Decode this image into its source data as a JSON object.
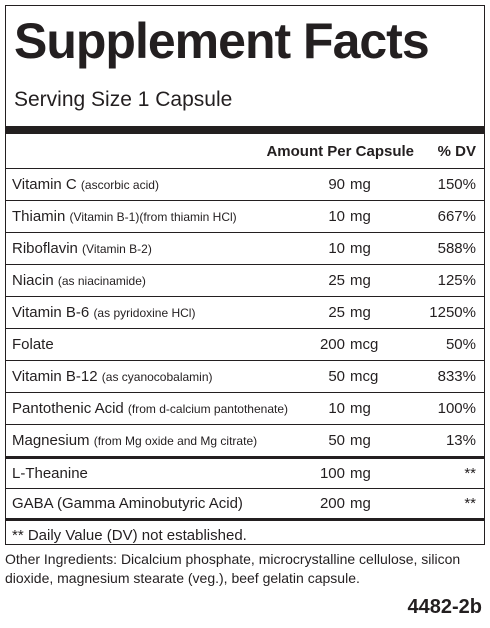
{
  "header": {
    "title": "Supplement Facts",
    "serving_size": "Serving Size 1 Capsule"
  },
  "table": {
    "columns": [
      "Amount Per Capsule",
      "% DV"
    ],
    "sections": [
      {
        "rows": [
          {
            "name": "Vitamin C",
            "note": "(ascorbic acid)",
            "amount": 90,
            "unit": "mg",
            "dv": "150%"
          },
          {
            "name": "Thiamin",
            "note": "(Vitamin B-1)(from thiamin HCl)",
            "amount": 10,
            "unit": "mg",
            "dv": "667%"
          },
          {
            "name": "Riboflavin",
            "note": "(Vitamin B-2)",
            "amount": 10,
            "unit": "mg",
            "dv": "588%"
          },
          {
            "name": "Niacin",
            "note": "(as niacinamide)",
            "amount": 25,
            "unit": "mg",
            "dv": "125%"
          },
          {
            "name": "Vitamin B-6",
            "note": "(as pyridoxine HCl)",
            "amount": 25,
            "unit": "mg",
            "dv": "1250%"
          },
          {
            "name": "Folate",
            "amount": 200,
            "unit": "mcg",
            "dv": "50%"
          },
          {
            "name": "Vitamin B-12",
            "note": "(as cyanocobalamin)",
            "amount": 50,
            "unit": "mcg",
            "dv": "833%"
          },
          {
            "name": "Pantothenic Acid",
            "note": "(from d-calcium pantothenate)",
            "amount": 10,
            "unit": "mg",
            "dv": "100%"
          },
          {
            "name": "Magnesium",
            "note": "(from Mg oxide and  Mg citrate)",
            "amount": 50,
            "unit": "mg",
            "dv": "13%"
          }
        ]
      },
      {
        "rows": [
          {
            "name": "L-Theanine",
            "amount": 100,
            "unit": "mg",
            "dv": "**"
          },
          {
            "name": "GABA (Gamma Aminobutyric Acid)",
            "amount": 200,
            "unit": "mg",
            "dv": "**"
          }
        ]
      }
    ]
  },
  "footnote": "** Daily Value (DV) not established.",
  "other_ingredients": "Other Ingredients:  Dicalcium phosphate, microcrystalline cellulose, silicon dioxide, magnesium stearate (veg.), beef gelatin capsule.",
  "code": "4482-2b"
}
